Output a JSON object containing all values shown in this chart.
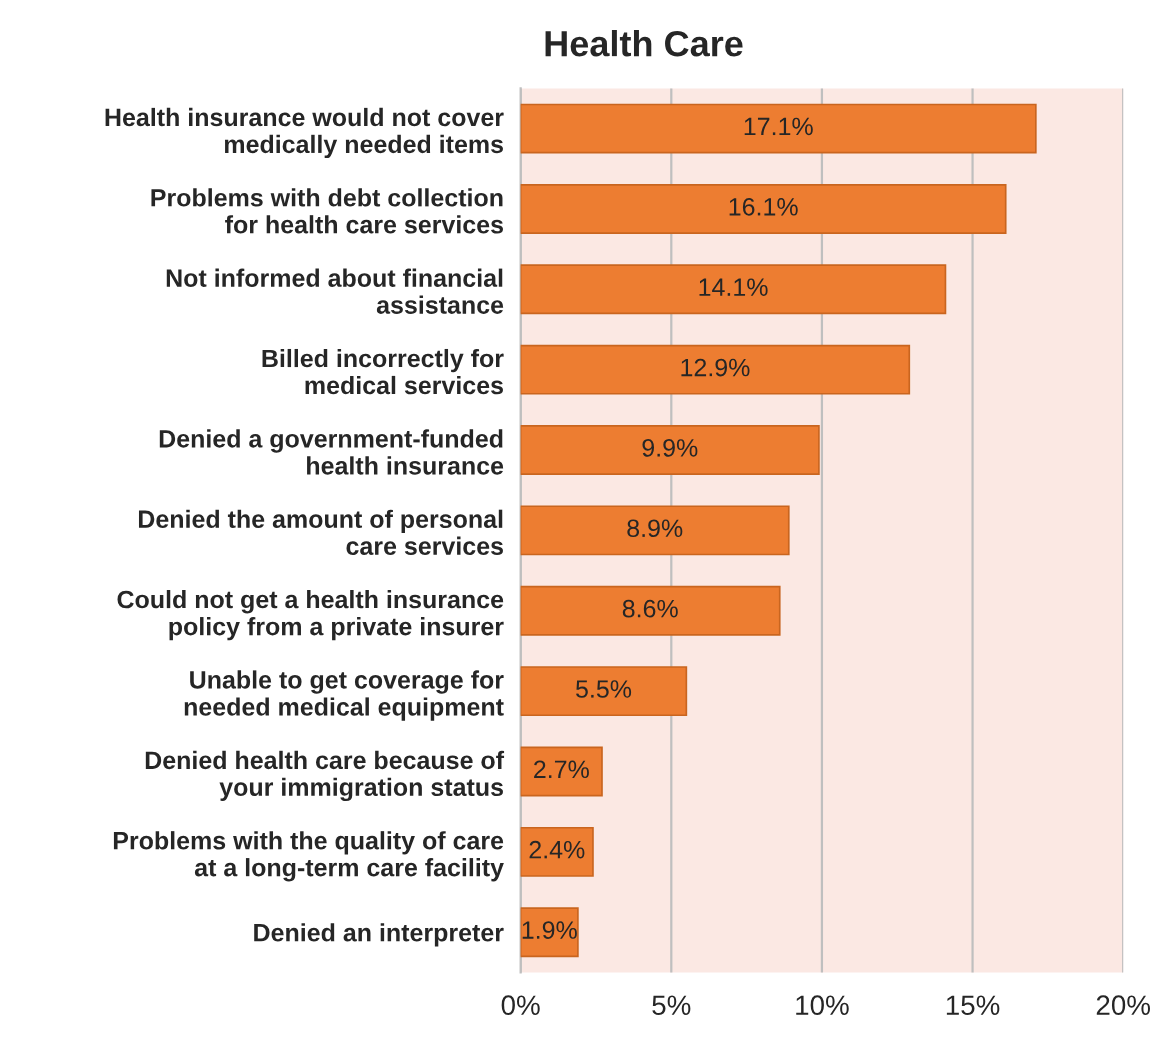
{
  "chart_data": {
    "type": "bar",
    "orientation": "horizontal",
    "title": "Health Care",
    "categories": [
      "Health insurance would not cover\nmedically needed items",
      "Problems with debt collection\nfor health care services",
      "Not informed about financial\nassistance",
      "Billed incorrectly for\nmedical services",
      "Denied a government-funded\nhealth insurance",
      "Denied the amount of personal\ncare services",
      "Could not get a health insurance\npolicy from a private insurer",
      "Unable to get coverage for\nneeded medical equipment",
      "Denied health care because of\nyour immigration status",
      "Problems with the quality of care\nat a long-term care facility",
      "Denied an interpreter"
    ],
    "values": [
      17.1,
      16.1,
      14.1,
      12.9,
      9.9,
      8.9,
      8.6,
      5.5,
      2.7,
      2.4,
      1.9
    ],
    "value_labels": [
      "17.1%",
      "16.1%",
      "14.1%",
      "12.9%",
      "9.9%",
      "8.9%",
      "8.6%",
      "5.5%",
      "2.7%",
      "2.4%",
      "1.9%"
    ],
    "color": "#ed7d31",
    "xlim": [
      0,
      20
    ],
    "xticks": [
      {
        "value": 0,
        "label": "0%"
      },
      {
        "value": 5,
        "label": "5%"
      },
      {
        "value": 10,
        "label": "10%"
      },
      {
        "value": 15,
        "label": "15%"
      },
      {
        "value": 20,
        "label": "20%"
      }
    ],
    "grid": "x",
    "legend": false
  }
}
